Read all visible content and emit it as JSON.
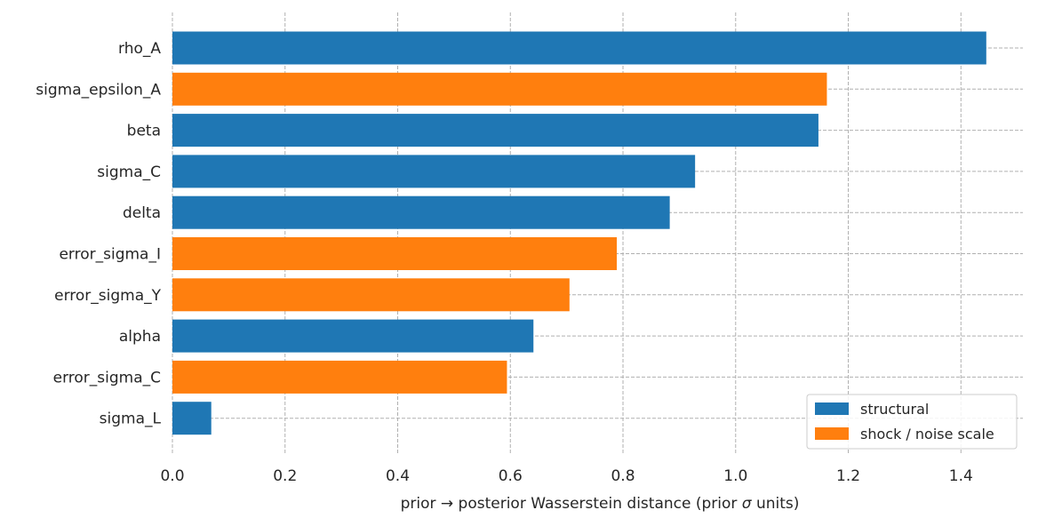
{
  "chart_data": {
    "type": "bar",
    "orientation": "horizontal",
    "categories": [
      "rho_A",
      "sigma_epsilon_A",
      "beta",
      "sigma_C",
      "delta",
      "error_sigma_I",
      "error_sigma_Y",
      "alpha",
      "error_sigma_C",
      "sigma_L"
    ],
    "values": [
      1.445,
      1.162,
      1.147,
      0.928,
      0.883,
      0.789,
      0.705,
      0.641,
      0.594,
      0.069
    ],
    "groups": [
      "structural",
      "shock / noise scale",
      "structural",
      "structural",
      "structural",
      "shock / noise scale",
      "shock / noise scale",
      "structural",
      "shock / noise scale",
      "structural"
    ],
    "xlabel": "prior → posterior Wasserstein distance (prior σ units)",
    "xlabel_prefix": "prior  →  posterior Wasserstein distance (prior ",
    "xlabel_symbol": "σ",
    "xlabel_suffix": " units)",
    "xlim": [
      0,
      1.51
    ],
    "xticks": [
      "0.0",
      "0.2",
      "0.4",
      "0.6",
      "0.8",
      "1.0",
      "1.2",
      "1.4"
    ],
    "grid": true,
    "legend": {
      "position": "bottom-right",
      "entries": [
        {
          "label": "structural",
          "color": "#1f77b4"
        },
        {
          "label": "shock / noise scale",
          "color": "#ff7f0e"
        }
      ]
    },
    "colors": {
      "structural": "#1f77b4",
      "shock / noise scale": "#ff7f0e"
    }
  }
}
